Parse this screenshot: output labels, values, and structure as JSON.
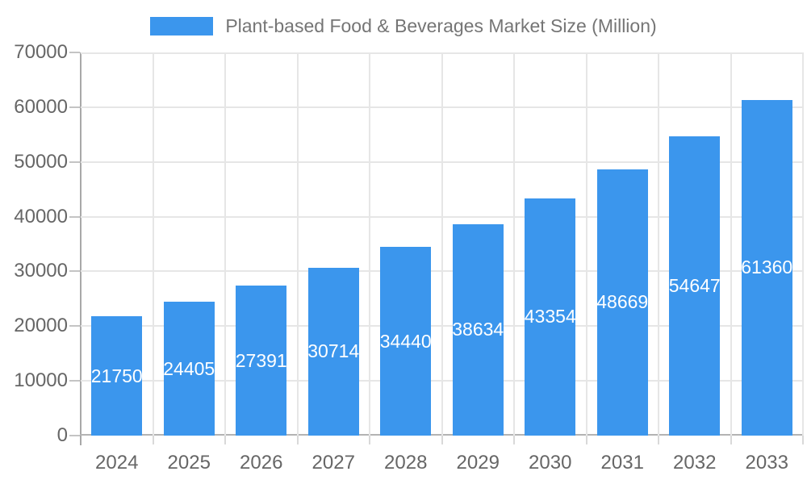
{
  "chart_data": {
    "type": "bar",
    "title": "Plant-based Food & Beverages Market Size (Million)",
    "categories": [
      "2024",
      "2025",
      "2026",
      "2027",
      "2028",
      "2029",
      "2030",
      "2031",
      "2032",
      "2033"
    ],
    "values": [
      21750,
      24405,
      27391,
      30714,
      34440,
      38634,
      43354,
      48669,
      54647,
      61360
    ],
    "xlabel": "",
    "ylabel": "",
    "ylim": [
      0,
      70000
    ],
    "yticks": [
      0,
      10000,
      20000,
      30000,
      40000,
      50000,
      60000,
      70000
    ],
    "grid": "both",
    "legend_position": "top-center",
    "bar_color": "#3b96ed",
    "bar_label_color": "#ffffff",
    "grid_color": "#e6e6e6",
    "axis_line_color": "#a8a8a8",
    "axis_text_color": "#666666",
    "title_text_color": "#757575"
  }
}
